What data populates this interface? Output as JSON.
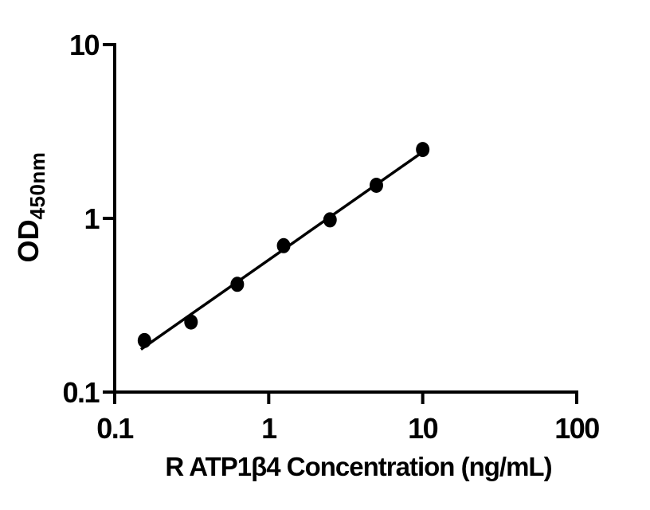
{
  "figure": {
    "background_color": "#ffffff",
    "ink_color": "#000000"
  },
  "chart_data": {
    "type": "scatter",
    "title": "",
    "xlabel": "R ATP1β4 Concentration (ng/mL)",
    "ylabel_main": "OD",
    "ylabel_sub": "450nm",
    "x_scale": "log",
    "y_scale": "log",
    "xlim": [
      0.1,
      100
    ],
    "ylim": [
      0.1,
      10
    ],
    "grid": false,
    "legend": "none",
    "x_ticks": [
      {
        "value": 0.1,
        "label": "0.1"
      },
      {
        "value": 1,
        "label": "1"
      },
      {
        "value": 10,
        "label": "10"
      },
      {
        "value": 100,
        "label": "100"
      }
    ],
    "y_ticks": [
      {
        "value": 0.1,
        "label": "0.1"
      },
      {
        "value": 1,
        "label": "1"
      },
      {
        "value": 10,
        "label": "10"
      }
    ],
    "series": [
      {
        "name": "standard-curve",
        "marker": "filled-circle",
        "color": "#000000",
        "points": [
          {
            "x": 0.156,
            "y": 0.198
          },
          {
            "x": 0.313,
            "y": 0.253
          },
          {
            "x": 0.625,
            "y": 0.417
          },
          {
            "x": 1.25,
            "y": 0.696
          },
          {
            "x": 2.5,
            "y": 0.98
          },
          {
            "x": 5,
            "y": 1.55
          },
          {
            "x": 10,
            "y": 2.49
          }
        ]
      }
    ],
    "trend_line": {
      "description": "linear fit in log-log space",
      "color": "#000000",
      "x1": 0.148,
      "y1": 0.176,
      "x2": 10.0,
      "y2": 2.41
    }
  }
}
